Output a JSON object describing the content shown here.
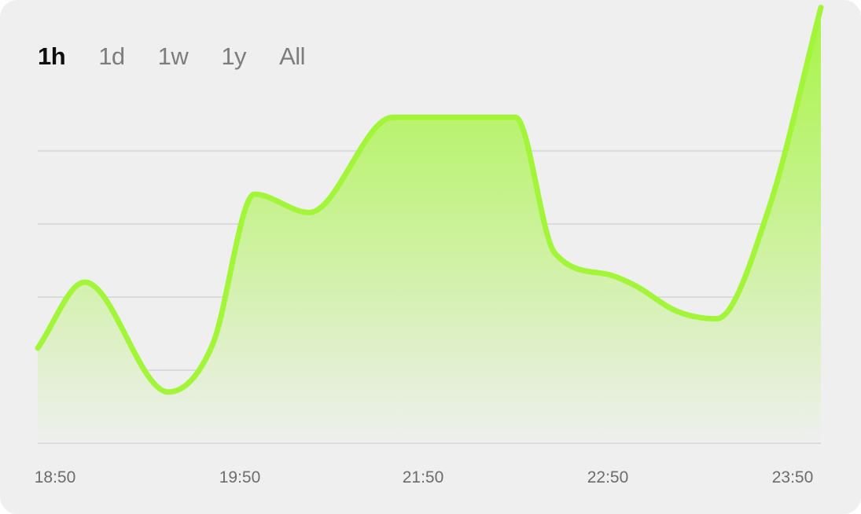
{
  "tabs": [
    {
      "label": "1h",
      "active": true
    },
    {
      "label": "1d",
      "active": false
    },
    {
      "label": "1w",
      "active": false
    },
    {
      "label": "1y",
      "active": false
    },
    {
      "label": "All",
      "active": false
    }
  ],
  "colors": {
    "line": "#a3f53a",
    "fill_top": "#a3f53a",
    "fill_bottom": "#efefef",
    "grid": "#cfcfcf"
  },
  "chart_data": {
    "type": "area",
    "title": "",
    "xlabel": "",
    "ylabel": "",
    "grid": true,
    "gridlines": 4,
    "tick_labels": [
      "18:50",
      "19:50",
      "21:50",
      "22:50",
      "23:50"
    ],
    "ylim": [
      0,
      100
    ],
    "x": [
      "18:50",
      "19:08",
      "19:40",
      "19:57",
      "20:13",
      "20:34",
      "21:06",
      "21:53",
      "22:08",
      "22:29",
      "22:39",
      "22:55",
      "23:10",
      "23:30",
      "23:50"
    ],
    "series": [
      {
        "values": [
          26,
          44,
          14,
          27,
          68,
          63,
          89,
          89,
          52,
          46,
          43,
          36,
          34,
          64,
          119
        ]
      }
    ]
  }
}
